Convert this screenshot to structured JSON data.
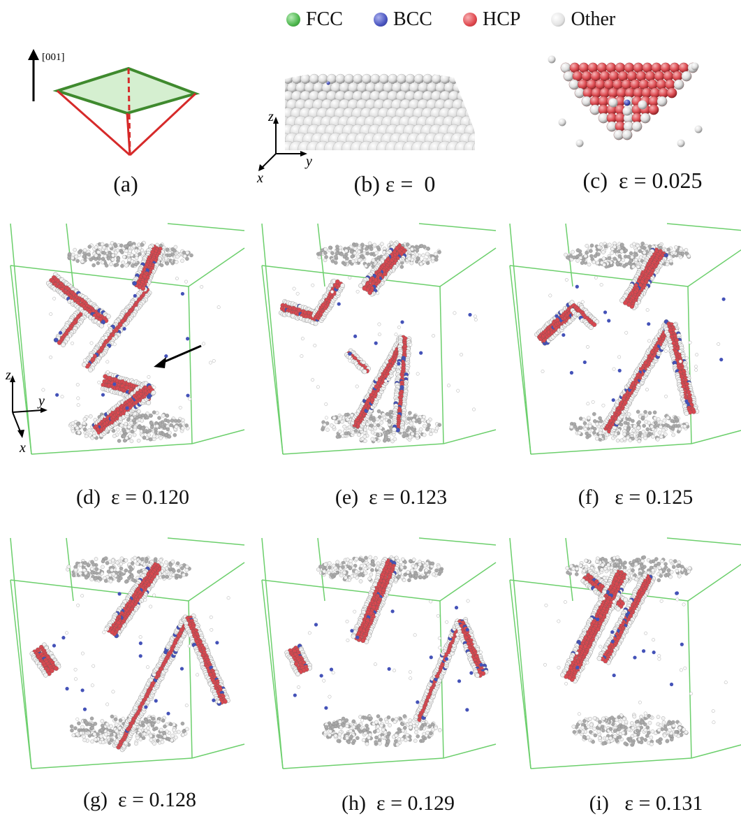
{
  "legend": [
    {
      "label": "FCC",
      "color": "#4cb64c"
    },
    {
      "label": "BCC",
      "color": "#4a55c0"
    },
    {
      "label": "HCP",
      "color": "#e0484e"
    },
    {
      "label": "Other",
      "color": "#ececec"
    }
  ],
  "colors": {
    "box_edge": "#6ccf6c",
    "hcp": "#d94850",
    "bcc": "#4452b8",
    "other": "#f2f2f2",
    "other_shade": "#a9a9a9",
    "tetra_red": "#d62a2a",
    "tetra_green": "#3f8a2e",
    "tetra_fill": "#d5efd0"
  },
  "panel_a": {
    "direction": "[001]",
    "caption": "(a)"
  },
  "panel_b": {
    "axes": {
      "z": "z",
      "y": "y",
      "x": "x"
    },
    "caption": "(b) ε =  0"
  },
  "panel_c": {
    "caption": "(c)  ε = 0.025"
  },
  "snapshots": [
    {
      "label": "(d)  ε = 0.120",
      "strain": 0.12
    },
    {
      "label": "(e)  ε = 0.123",
      "strain": 0.123
    },
    {
      "label": "(f)   ε = 0.125",
      "strain": 0.125
    },
    {
      "label": "(g)  ε = 0.128",
      "strain": 0.128
    },
    {
      "label": "(h)  ε = 0.129",
      "strain": 0.129
    },
    {
      "label": "(i)   ε = 0.131",
      "strain": 0.131
    }
  ],
  "panel_d_axes": {
    "z": "z",
    "y": "y",
    "x": "x"
  }
}
